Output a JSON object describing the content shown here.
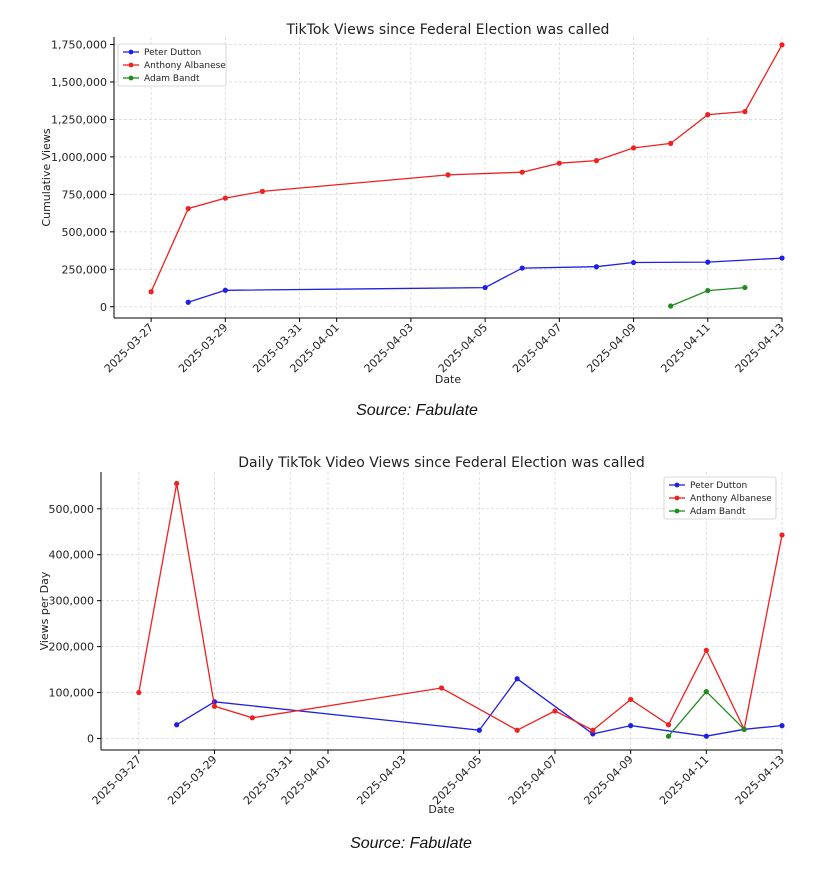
{
  "colors": {
    "dutton": "#1f1fe6",
    "albanese": "#f21f1f",
    "bandt": "#1f8c1f"
  },
  "chart_data": [
    {
      "type": "line",
      "title": "TikTok Views since Federal Election was called",
      "xlabel": "Date",
      "ylabel": "Cumulative Views",
      "xlim": [
        "2025-03-26",
        "2025-04-13"
      ],
      "ylim": [
        -75000,
        1800000
      ],
      "x_ticks": [
        "2025-03-27",
        "2025-03-29",
        "2025-03-31",
        "2025-04-01",
        "2025-04-03",
        "2025-04-05",
        "2025-04-07",
        "2025-04-09",
        "2025-04-11",
        "2025-04-13"
      ],
      "y_ticks": [
        0,
        250000,
        500000,
        750000,
        1000000,
        1250000,
        1500000,
        1750000
      ],
      "y_tick_labels": [
        "0",
        "250,000",
        "500,000",
        "750,000",
        "1,000,000",
        "1,250,000",
        "1,500,000",
        "1,750,000"
      ],
      "grid": true,
      "legend": "top-left",
      "series": [
        {
          "name": "Peter Dutton",
          "color_key": "dutton",
          "x": [
            "2025-03-28",
            "2025-03-29",
            "2025-04-05",
            "2025-04-06",
            "2025-04-08",
            "2025-04-09",
            "2025-04-11",
            "2025-04-13"
          ],
          "y": [
            30000,
            110000,
            128000,
            258000,
            267000,
            295000,
            298000,
            325000
          ]
        },
        {
          "name": "Anthony Albanese",
          "color_key": "albanese",
          "x": [
            "2025-03-27",
            "2025-03-28",
            "2025-03-29",
            "2025-03-30",
            "2025-04-04",
            "2025-04-06",
            "2025-04-07",
            "2025-04-08",
            "2025-04-09",
            "2025-04-10",
            "2025-04-11",
            "2025-04-12",
            "2025-04-13"
          ],
          "y": [
            100000,
            655000,
            725000,
            770000,
            880000,
            898000,
            958000,
            975000,
            1060000,
            1090000,
            1282000,
            1302000,
            1748000
          ]
        },
        {
          "name": "Adam Bandt",
          "color_key": "bandt",
          "x": [
            "2025-04-10",
            "2025-04-11",
            "2025-04-12"
          ],
          "y": [
            5000,
            108000,
            128000
          ]
        }
      ]
    },
    {
      "type": "line",
      "title": "Daily TikTok Video Views since Federal Election was called",
      "xlabel": "Date",
      "ylabel": "Views per Day",
      "xlim": [
        "2025-03-26",
        "2025-04-13"
      ],
      "ylim": [
        -25000,
        580000
      ],
      "x_ticks": [
        "2025-03-27",
        "2025-03-29",
        "2025-03-31",
        "2025-04-01",
        "2025-04-03",
        "2025-04-05",
        "2025-04-07",
        "2025-04-09",
        "2025-04-11",
        "2025-04-13"
      ],
      "y_ticks": [
        0,
        100000,
        200000,
        300000,
        400000,
        500000
      ],
      "y_tick_labels": [
        "0",
        "100,000",
        "200,000",
        "300,000",
        "400,000",
        "500,000"
      ],
      "grid": true,
      "legend": "top-right",
      "series": [
        {
          "name": "Peter Dutton",
          "color_key": "dutton",
          "x": [
            "2025-03-28",
            "2025-03-29",
            "2025-04-05",
            "2025-04-06",
            "2025-04-08",
            "2025-04-09",
            "2025-04-11",
            "2025-04-12",
            "2025-04-13"
          ],
          "y": [
            30000,
            80000,
            18000,
            130000,
            10000,
            28000,
            5000,
            20000,
            28000
          ]
        },
        {
          "name": "Anthony Albanese",
          "color_key": "albanese",
          "x": [
            "2025-03-27",
            "2025-03-28",
            "2025-03-29",
            "2025-03-30",
            "2025-04-04",
            "2025-04-06",
            "2025-04-07",
            "2025-04-08",
            "2025-04-09",
            "2025-04-10",
            "2025-04-11",
            "2025-04-12",
            "2025-04-13"
          ],
          "y": [
            100000,
            555000,
            70000,
            45000,
            110000,
            18000,
            60000,
            18000,
            85000,
            30000,
            192000,
            20000,
            443000
          ]
        },
        {
          "name": "Adam Bandt",
          "color_key": "bandt",
          "x": [
            "2025-04-10",
            "2025-04-11",
            "2025-04-12"
          ],
          "y": [
            5000,
            102000,
            20000
          ]
        }
      ]
    }
  ],
  "captions": [
    "Source: Fabulate",
    "Source: Fabulate"
  ]
}
